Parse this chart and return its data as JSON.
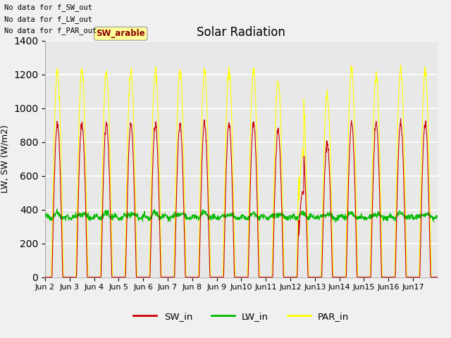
{
  "title": "Solar Radiation",
  "ylabel": "LW, SW (W/m2)",
  "fig_bg_color": "#f0f0f0",
  "plot_bg_color": "#e8e8e8",
  "sw_color": "#cc0000",
  "lw_color": "#00bb00",
  "par_color": "#ffff00",
  "grid_color": "#ffffff",
  "ylim": [
    0,
    1400
  ],
  "yticks": [
    0,
    200,
    400,
    600,
    800,
    1000,
    1200,
    1400
  ],
  "xlim": [
    2,
    18
  ],
  "annotations": [
    "No data for f_SW_out",
    "No data for f_LW_out",
    "No data for f_PAR_out"
  ],
  "legend_label": "SW_arable",
  "legend_bg": "#ffff99",
  "n_days": 16,
  "start_day": 2,
  "sw_peak": 910,
  "par_peak": 1225,
  "lw_base": 355,
  "points_per_day": 96,
  "figsize": [
    6.4,
    4.8
  ],
  "dpi": 100
}
